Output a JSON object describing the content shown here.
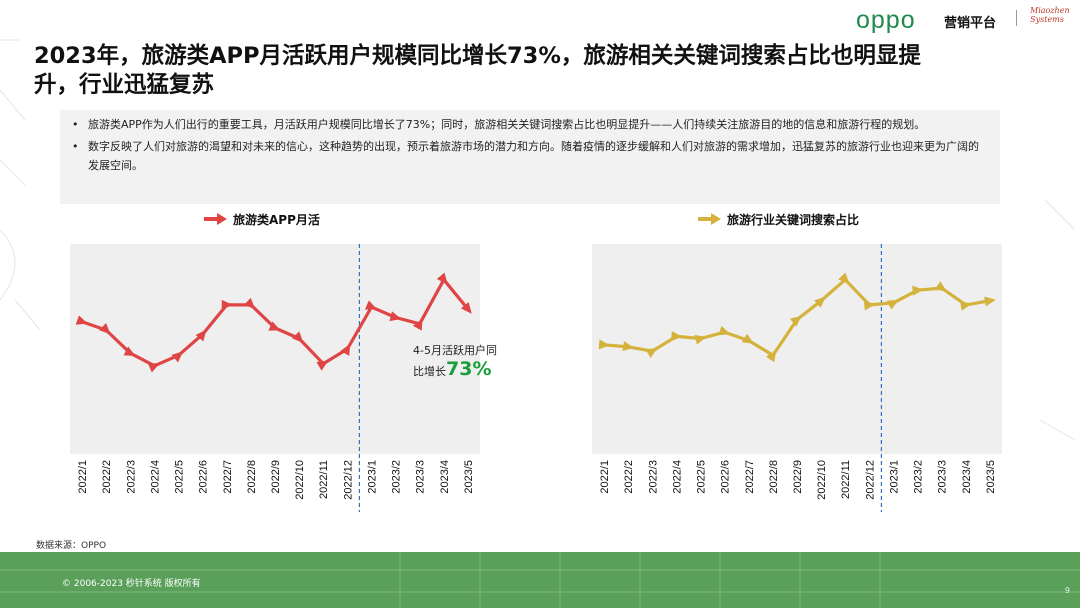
{
  "header": {
    "brand": "oppo",
    "brand_sub": "营销平台",
    "partner_logo": "Miaozhen Systems"
  },
  "title": "2023年，旅游类APP月活跃用户规模同比增长73%，旅游相关关键词搜索占比也明显提升，行业迅猛复苏",
  "bullets": [
    "旅游类APP作为人们出行的重要工具，月活跃用户规模同比增长了73%；同时，旅游相关关键词搜索占比也明显提升——人们持续关注旅游目的地的信息和旅游行程的规划。",
    "数字反映了人们对旅游的渴望和对未来的信心，这种趋势的出现，预示着旅游市场的潜力和方向。随着疫情的逐步缓解和人们对旅游的需求增加，迅猛复苏的旅游行业也迎来更为广阔的发展空间。"
  ],
  "bullet_symbol": "•",
  "annotation": {
    "line1": "4-5月活跃用户同",
    "line2": "比增长",
    "value": "73%"
  },
  "source": "数据来源：OPPO",
  "footer": {
    "copyright": "© 2006-2023 秒针系统 版权所有",
    "page_number": "9"
  },
  "colors": {
    "red_series": "#e04545",
    "gold_series": "#d4b23c",
    "plot_bg": "#efefef",
    "divider": "#2e6fc7",
    "footer_bg": "#5aa05a",
    "highlight": "#1a9e3a"
  },
  "chart_data": [
    {
      "type": "line",
      "title": "",
      "legend": "旅游类APP月活",
      "legend_position": "top",
      "categories": [
        "2022/1",
        "2022/2",
        "2022/3",
        "2022/4",
        "2022/5",
        "2022/6",
        "2022/7",
        "2022/8",
        "2022/9",
        "2022/10",
        "2022/11",
        "2022/12",
        "2023/1",
        "2023/2",
        "2023/3",
        "2023/4",
        "2023/5"
      ],
      "series": [
        {
          "name": "旅游类APP月活",
          "values": [
            63,
            59,
            48,
            42,
            47,
            57,
            71,
            71,
            60,
            55,
            43,
            50,
            70,
            65,
            62,
            83,
            69
          ]
        }
      ],
      "ylim": [
        0,
        100
      ],
      "xlabel": "",
      "ylabel": "",
      "divider_after": "2022/12"
    },
    {
      "type": "line",
      "title": "",
      "legend": "旅游行业关键词搜索占比",
      "legend_position": "top",
      "categories": [
        "2022/1",
        "2022/2",
        "2022/3",
        "2022/4",
        "2022/5",
        "2022/6",
        "2022/7",
        "2022/8",
        "2022/9",
        "2022/10",
        "2022/11",
        "2022/12",
        "2023/1",
        "2023/2",
        "2023/3",
        "2023/4",
        "2023/5"
      ],
      "series": [
        {
          "name": "旅游行业关键词搜索占比",
          "values": [
            52,
            51,
            49,
            56,
            55,
            58,
            54,
            47,
            64,
            73,
            83,
            71,
            72,
            78,
            79,
            71,
            73
          ]
        }
      ],
      "ylim": [
        0,
        100
      ],
      "xlabel": "",
      "ylabel": "",
      "divider_after": "2022/12"
    }
  ]
}
